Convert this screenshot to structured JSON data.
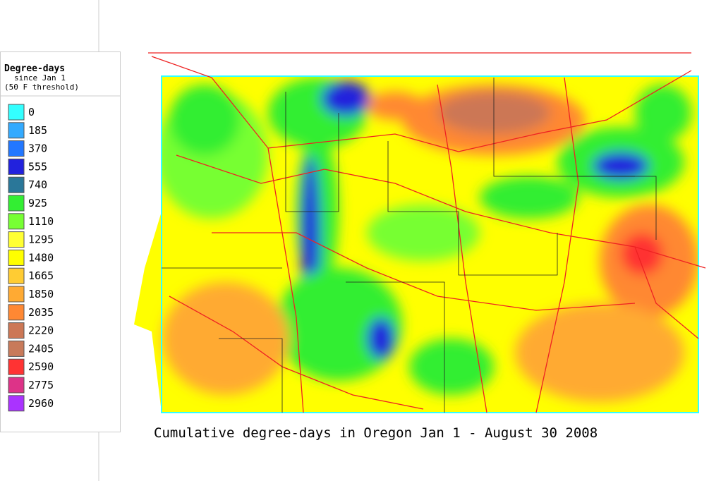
{
  "legend": {
    "title": "Degree-days",
    "subtitle": [
      "since Jan 1",
      "(50 F threshold)"
    ],
    "items": [
      {
        "value": 0,
        "color": "#33ffff"
      },
      {
        "value": 185,
        "color": "#33aaff"
      },
      {
        "value": 370,
        "color": "#2277ff"
      },
      {
        "value": 555,
        "color": "#2222dd"
      },
      {
        "value": 740,
        "color": "#2a7799"
      },
      {
        "value": 925,
        "color": "#33ee33"
      },
      {
        "value": 1110,
        "color": "#77ff33"
      },
      {
        "value": 1295,
        "color": "#ffff33"
      },
      {
        "value": 1480,
        "color": "#ffff00"
      },
      {
        "value": 1665,
        "color": "#ffcc33"
      },
      {
        "value": 1850,
        "color": "#ffaa33"
      },
      {
        "value": 2035,
        "color": "#ff8833"
      },
      {
        "value": 2220,
        "color": "#cc7755"
      },
      {
        "value": 2405,
        "color": "#c87a5a"
      },
      {
        "value": 2590,
        "color": "#ff3333"
      },
      {
        "value": 2775,
        "color": "#dd3388"
      },
      {
        "value": 2960,
        "color": "#aa33ff"
      }
    ]
  },
  "caption": "Cumulative degree-days in Oregon Jan 1 - August 30 2008"
}
